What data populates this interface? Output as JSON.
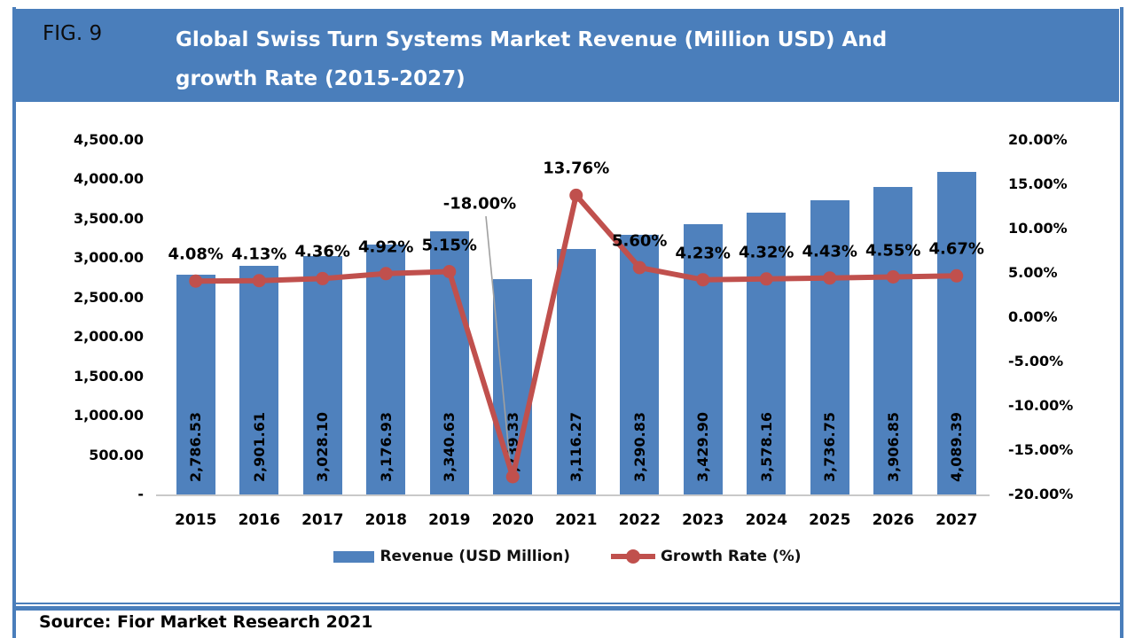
{
  "figure": {
    "fig_label": "FIG. 9",
    "title_line1": "Global Swiss Turn Systems Market Revenue (Million USD) And",
    "title_line2": "growth Rate (2015-2027)",
    "source": "Source: Fior Market Research 2021"
  },
  "colors": {
    "header_blue": "#4a7ebb",
    "bar_blue": "#4f81bd",
    "line_red": "#c0504d",
    "axis_gray": "#c9c9c9",
    "leader_gray": "#a0a0a0"
  },
  "chart_data": {
    "type": "bar",
    "combo": "bar+line",
    "title": "Global Swiss Turn Systems Market Revenue (Million USD) And growth Rate (2015-2027)",
    "categories": [
      "2015",
      "2016",
      "2017",
      "2018",
      "2019",
      "2020",
      "2021",
      "2022",
      "2023",
      "2024",
      "2025",
      "2026",
      "2027"
    ],
    "series": [
      {
        "name": "Revenue (USD Million)",
        "type": "bar",
        "axis": "left",
        "values": [
          2786.53,
          2901.61,
          3028.1,
          3176.93,
          3340.63,
          2739.33,
          3116.27,
          3290.83,
          3429.9,
          3578.16,
          3736.75,
          3906.85,
          4089.39
        ],
        "labels": [
          "2,786.53",
          "2,901.61",
          "3,028.10",
          "3,176.93",
          "3,340.63",
          "2,739.33",
          "3,116.27",
          "3,290.83",
          "3,429.90",
          "3,578.16",
          "3,736.75",
          "3,906.85",
          "4,089.39"
        ]
      },
      {
        "name": "Growth Rate (%)",
        "type": "line",
        "axis": "right",
        "values": [
          4.08,
          4.13,
          4.36,
          4.92,
          5.15,
          -18.0,
          13.76,
          5.6,
          4.23,
          4.32,
          4.43,
          4.55,
          4.67
        ],
        "labels": [
          "4.08%",
          "4.13%",
          "4.36%",
          "4.92%",
          "5.15%",
          "-18.00%",
          "13.76%",
          "5.60%",
          "4.23%",
          "4.32%",
          "4.43%",
          "4.55%",
          "4.67%"
        ]
      }
    ],
    "left_axis": {
      "min": 0,
      "max": 4500,
      "ticks": [
        "4,500.00",
        "4,000.00",
        "3,500.00",
        "3,000.00",
        "2,500.00",
        "2,000.00",
        "1,500.00",
        "1,000.00",
        "500.00",
        "-"
      ]
    },
    "right_axis": {
      "min": -20,
      "max": 20,
      "ticks": [
        "20.00%",
        "15.00%",
        "10.00%",
        "5.00%",
        "0.00%",
        "-5.00%",
        "-10.00%",
        "-15.00%",
        "-20.00%"
      ]
    },
    "gridlines": "none",
    "legend_position": "bottom",
    "legend": [
      {
        "label": "Revenue (USD Million)",
        "marker": "bar-swatch"
      },
      {
        "label": "Growth Rate (%)",
        "marker": "line-dot-swatch"
      }
    ],
    "callout": {
      "category": "2020",
      "label": "-18.00%",
      "leader_line": true
    }
  }
}
